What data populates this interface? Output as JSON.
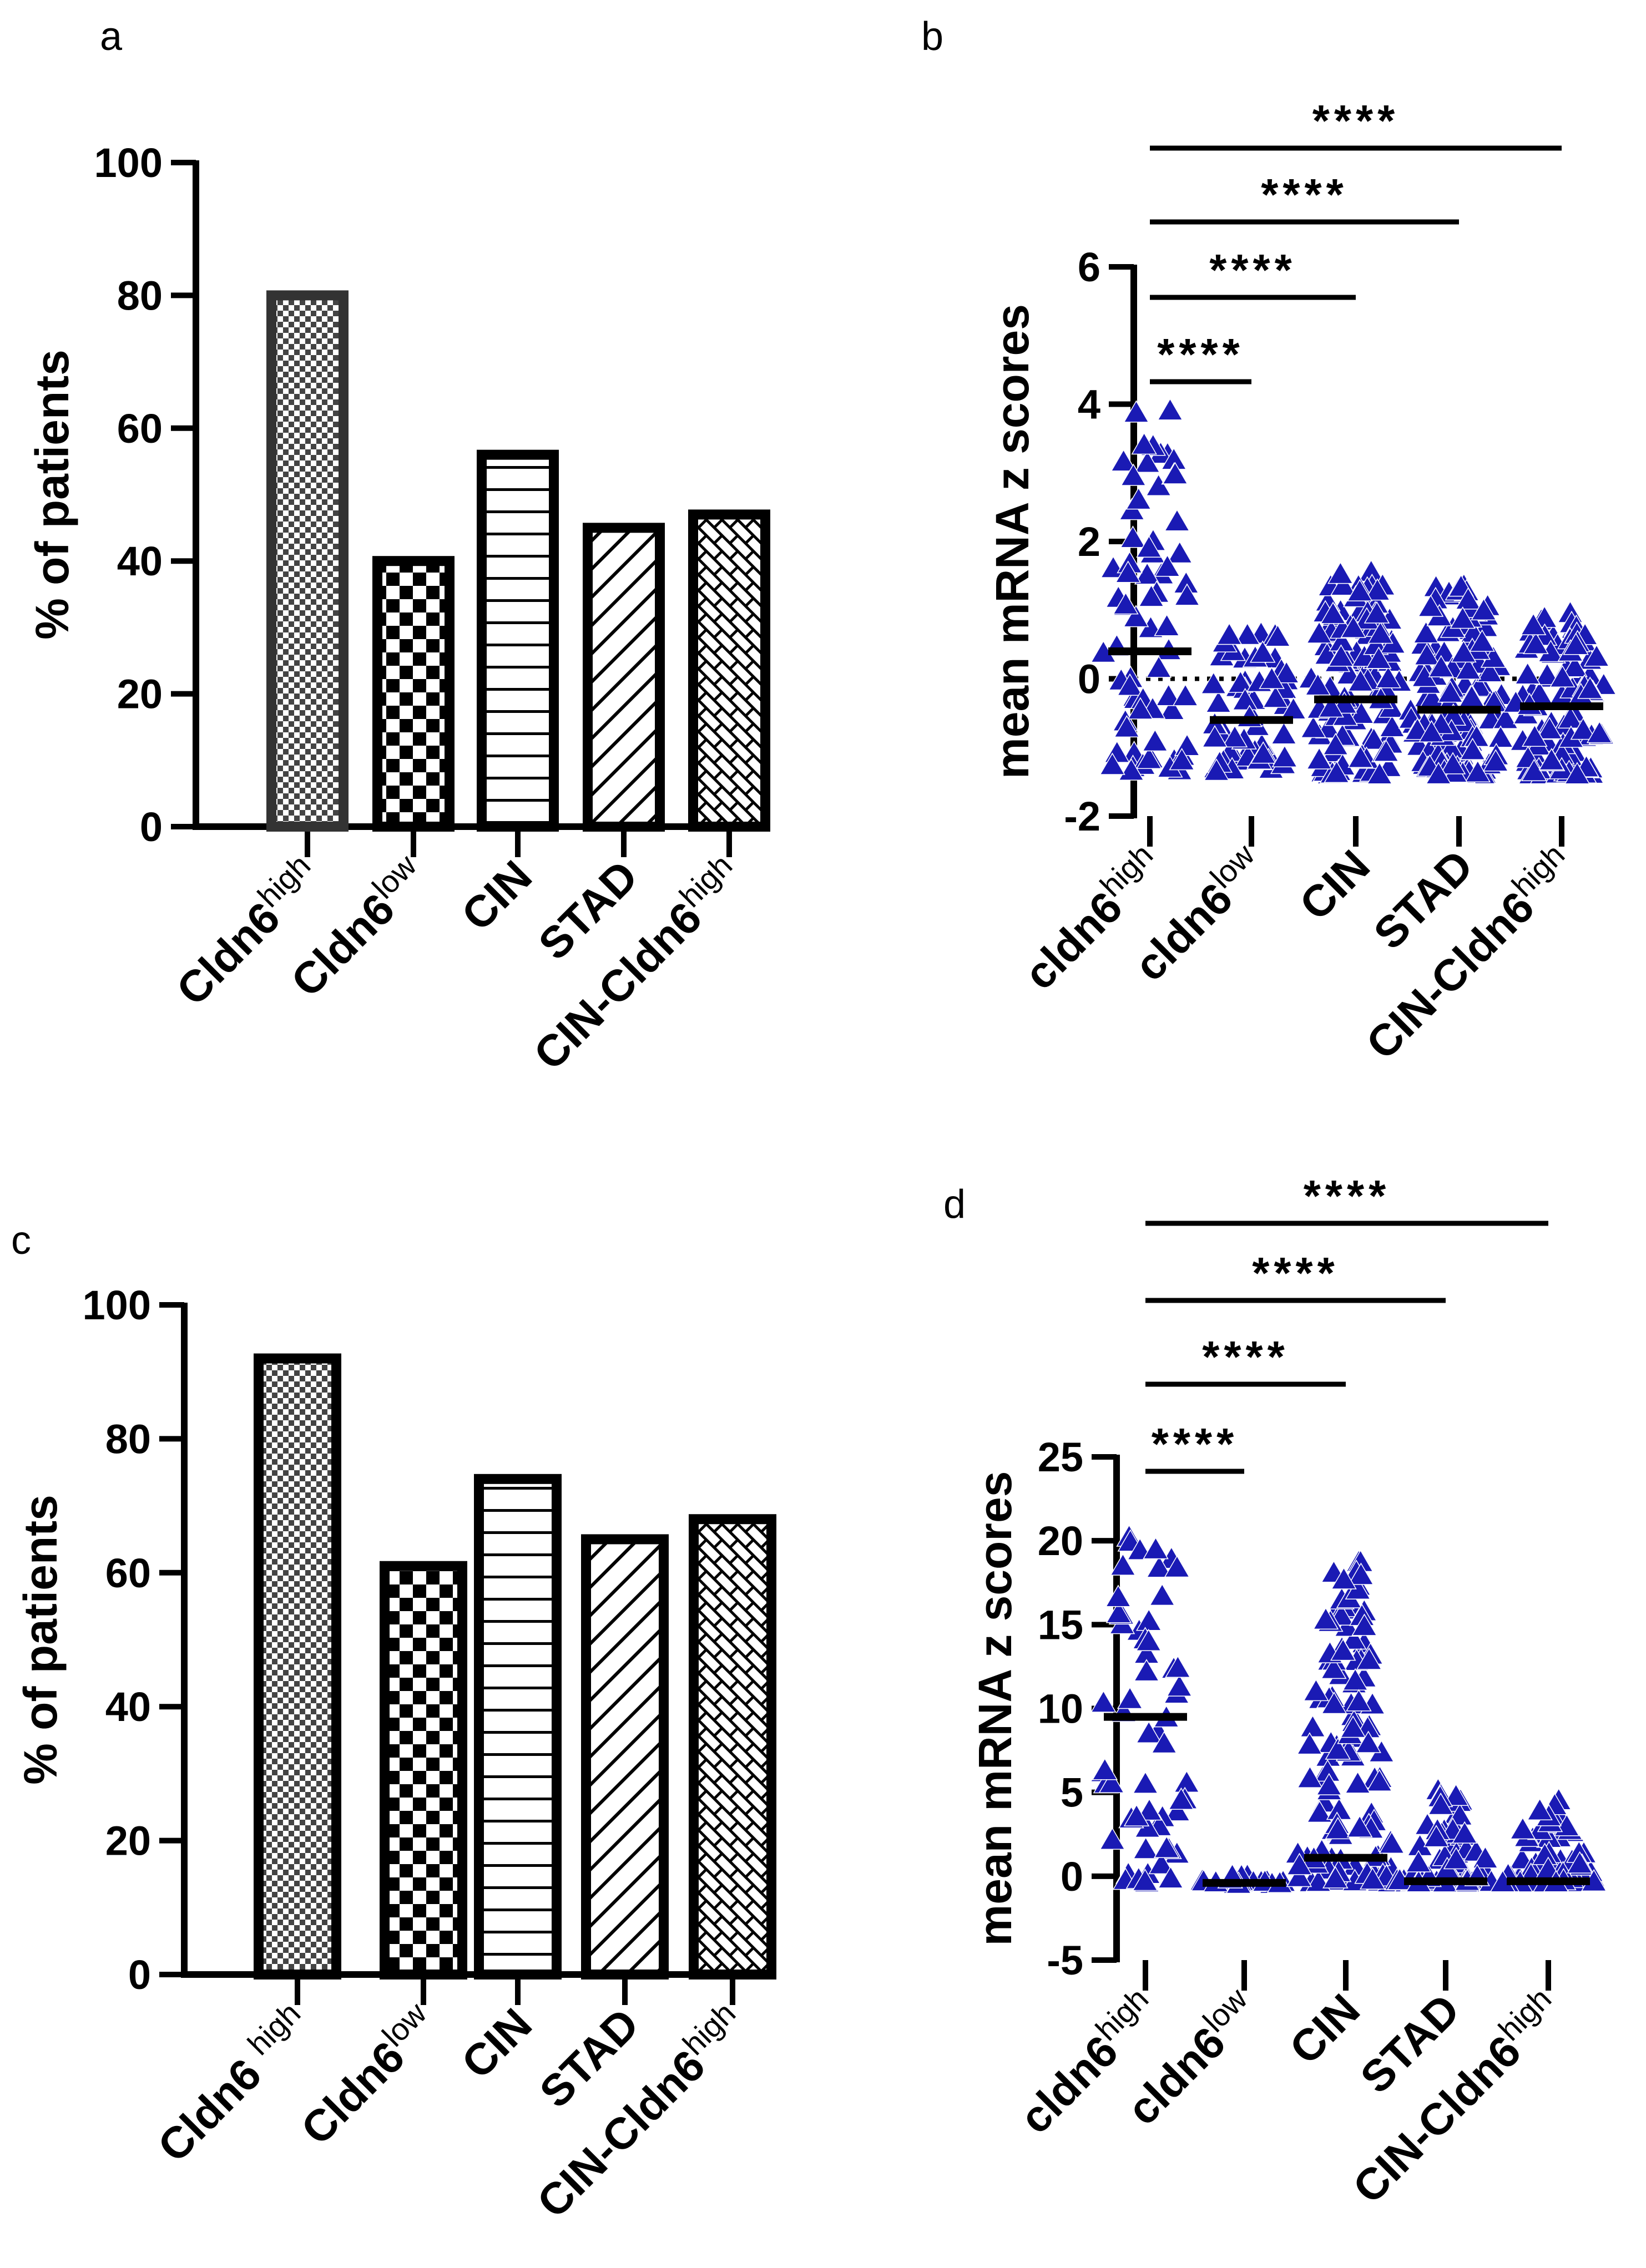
{
  "panels_labels": [
    "a",
    "b",
    "c",
    "d"
  ],
  "colors": {
    "point": "#1a1ab4",
    "axis": "#000000",
    "bar_a_first_edge": "#333333"
  },
  "chart_data": [
    {
      "panel": "a",
      "type": "bar",
      "ylabel": "% of patients",
      "ylim": [
        0,
        100
      ],
      "yticks": [
        0,
        20,
        40,
        60,
        80,
        100
      ],
      "categories": [
        {
          "base": "Cldn6",
          "sup": "high"
        },
        {
          "base": "Cldn6",
          "sup": "low"
        },
        {
          "base": "CIN",
          "sup": ""
        },
        {
          "base": "STAD",
          "sup": ""
        },
        {
          "base": "CIN-Cldn6",
          "sup": "high"
        }
      ],
      "values": [
        80,
        40,
        56,
        45,
        47
      ],
      "patterns": [
        "fine-check",
        "check",
        "hlines",
        "diag",
        "brick"
      ]
    },
    {
      "panel": "b",
      "type": "scatter",
      "ylabel": "mean mRNA z scores",
      "ylim": [
        -2,
        6
      ],
      "yticks": [
        -2,
        0,
        2,
        4,
        6
      ],
      "categories": [
        {
          "base": "cldn6",
          "sup": "high"
        },
        {
          "base": "cldn6",
          "sup": "low"
        },
        {
          "base": "CIN",
          "sup": ""
        },
        {
          "base": "STAD",
          "sup": ""
        },
        {
          "base": "CIN-Cldn6",
          "sup": "high"
        }
      ],
      "medians": [
        0.4,
        -0.6,
        -0.3,
        -0.45,
        -0.4
      ],
      "ranges": [
        [
          -1.35,
          3.9
        ],
        [
          -1.35,
          0.65
        ],
        [
          -1.4,
          1.55
        ],
        [
          -1.4,
          1.35
        ],
        [
          -1.4,
          0.95
        ]
      ],
      "n_points": [
        70,
        60,
        120,
        150,
        110
      ],
      "reference_line": 0,
      "significance": [
        {
          "from": 0,
          "to": 1,
          "label": "****"
        },
        {
          "from": 0,
          "to": 2,
          "label": "****"
        },
        {
          "from": 0,
          "to": 3,
          "label": "****"
        },
        {
          "from": 0,
          "to": 4,
          "label": "****"
        }
      ]
    },
    {
      "panel": "c",
      "type": "bar",
      "ylabel": "% of patients",
      "ylim": [
        0,
        100
      ],
      "yticks": [
        0,
        20,
        40,
        60,
        80,
        100
      ],
      "categories": [
        {
          "base": "Cldn6 ",
          "sup": "high"
        },
        {
          "base": "Cldn6",
          "sup": "low"
        },
        {
          "base": "CIN",
          "sup": ""
        },
        {
          "base": "STAD",
          "sup": ""
        },
        {
          "base": "CIN-Cldn6",
          "sup": "high"
        }
      ],
      "values": [
        92,
        61,
        74,
        65,
        68
      ],
      "patterns": [
        "fine-check",
        "check",
        "hlines",
        "diag",
        "brick"
      ]
    },
    {
      "panel": "d",
      "type": "scatter",
      "ylabel": "mean mRNA z scores",
      "ylim": [
        -5,
        25
      ],
      "yticks": [
        -5,
        0,
        5,
        10,
        15,
        20,
        25
      ],
      "categories": [
        {
          "base": "cldn6",
          "sup": "high"
        },
        {
          "base": "cldn6",
          "sup": "low"
        },
        {
          "base": "CIN",
          "sup": ""
        },
        {
          "base": "STAD",
          "sup": ""
        },
        {
          "base": "CIN-Cldn6",
          "sup": "high"
        }
      ],
      "medians": [
        9.5,
        -0.4,
        1.1,
        -0.3,
        -0.3
      ],
      "ranges": [
        [
          -0.4,
          20.2
        ],
        [
          -0.5,
          0.0
        ],
        [
          -0.4,
          18.7
        ],
        [
          -0.4,
          5.1
        ],
        [
          -0.4,
          4.5
        ]
      ],
      "n_points": [
        60,
        20,
        120,
        80,
        60
      ],
      "significance": [
        {
          "from": 0,
          "to": 1,
          "label": "****"
        },
        {
          "from": 0,
          "to": 2,
          "label": "****"
        },
        {
          "from": 0,
          "to": 3,
          "label": "****"
        },
        {
          "from": 0,
          "to": 4,
          "label": "****"
        }
      ]
    }
  ]
}
